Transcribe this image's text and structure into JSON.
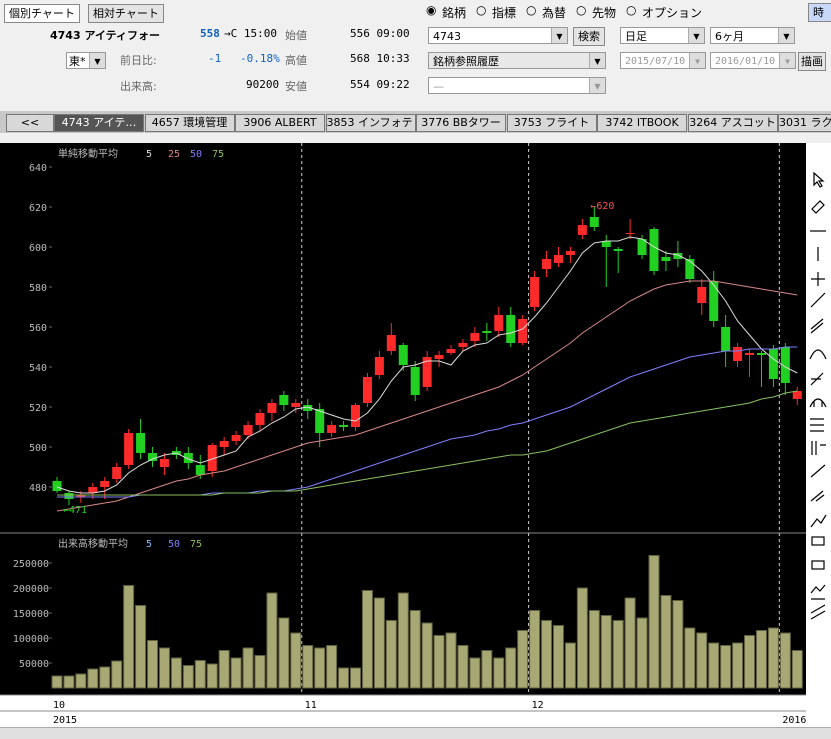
{
  "header": {
    "buttons": [
      "個別チャート",
      "相対チャート"
    ],
    "code_name": "4743 アイティフォー",
    "price": "558",
    "price_time": "→C 15:00",
    "exchange": "東*",
    "change_label": "前日比:",
    "change": "-1",
    "change_pct": "-0.18%",
    "volume_label": "出来高:",
    "volume": "90200",
    "open_label": "始値",
    "open": "556 09:00",
    "high_label": "高値",
    "high": "568 10:33",
    "low_label": "安値",
    "low": "554 09:22"
  },
  "search": {
    "modes": [
      "銘柄",
      "指標",
      "為替",
      "先物",
      "オプション"
    ],
    "code": "4743",
    "search_button": "検索",
    "history": "銘柄参照履歴",
    "sub": "—",
    "period": "日足",
    "span": "6ヶ月",
    "from": "2015/07/10",
    "to": "2016/01/10",
    "draw_button": "描画",
    "cut_button": "時"
  },
  "tabs": [
    "<<",
    "4743 アイテ…",
    "4657 環境管理",
    "3906 ALBERT",
    "3853 インフォテリ",
    "3776 BBタワー",
    "3753 フライト",
    "3742 ITBOOK",
    "3264 アスコット",
    "3031 ラク"
  ],
  "chart_data": [
    {
      "type": "candlestick",
      "title": "単純移動平均",
      "categories": [
        "10",
        null,
        null,
        null,
        null,
        null,
        null,
        null,
        null,
        null,
        null,
        null,
        null,
        null,
        null,
        null,
        null,
        null,
        null,
        null,
        null,
        "11",
        null,
        null,
        null,
        null,
        null,
        null,
        null,
        null,
        null,
        null,
        null,
        null,
        null,
        null,
        null,
        null,
        null,
        null,
        "12",
        null,
        null,
        null,
        null,
        null,
        null,
        null,
        null,
        null,
        null,
        null,
        null,
        null,
        null,
        null,
        null,
        null,
        null,
        null,
        null,
        null,
        null
      ],
      "open": [
        483,
        477,
        475,
        477,
        480,
        484,
        491,
        507,
        497,
        490,
        498,
        497,
        491,
        488,
        500,
        503,
        506,
        511,
        517,
        526,
        520,
        521,
        519,
        507,
        511,
        510,
        522,
        536,
        548,
        551,
        540,
        530,
        544,
        547,
        550,
        553,
        558,
        558,
        566,
        552,
        570,
        589,
        592,
        596,
        606,
        615,
        603,
        599,
        607,
        604,
        609,
        595,
        597,
        594,
        572,
        583,
        560,
        543,
        546,
        547,
        549,
        550,
        524
      ],
      "high": [
        485,
        478,
        478,
        482,
        485,
        492,
        509,
        514,
        500,
        497,
        500,
        500,
        496,
        502,
        505,
        508,
        513,
        519,
        524,
        528,
        524,
        524,
        522,
        513,
        513,
        522,
        537,
        548,
        562,
        552,
        543,
        548,
        548,
        551,
        554,
        560,
        562,
        570,
        570,
        566,
        588,
        598,
        600,
        600,
        614,
        620,
        606,
        600,
        614,
        606,
        610,
        598,
        603,
        596,
        584,
        588,
        566,
        552,
        549,
        548,
        551,
        552,
        530
      ],
      "low": [
        477,
        471,
        472,
        474,
        474,
        482,
        489,
        494,
        490,
        486,
        494,
        489,
        484,
        485,
        496,
        501,
        504,
        508,
        513,
        518,
        517,
        514,
        500,
        505,
        508,
        508,
        520,
        534,
        546,
        538,
        523,
        528,
        540,
        546,
        548,
        550,
        553,
        555,
        550,
        551,
        568,
        585,
        590,
        592,
        604,
        608,
        580,
        587,
        604,
        594,
        586,
        588,
        590,
        582,
        566,
        560,
        540,
        540,
        535,
        530,
        530,
        526,
        521
      ],
      "close": [
        478,
        474,
        476,
        480,
        483,
        490,
        507,
        497,
        493,
        494,
        496,
        492,
        486,
        501,
        503,
        506,
        511,
        517,
        522,
        521,
        522,
        518,
        507,
        511,
        510,
        521,
        535,
        545,
        556,
        541,
        526,
        545,
        546,
        549,
        552,
        557,
        557,
        566,
        552,
        564,
        585,
        594,
        596,
        598,
        611,
        610,
        600,
        598,
        607,
        596,
        588,
        593,
        594,
        584,
        580,
        563,
        548,
        550,
        547,
        546,
        534,
        532,
        528
      ],
      "up_color": "#ff2a2a",
      "down_color": "#22d022",
      "series": [
        {
          "name": "5",
          "color": "#dcdcdc",
          "values": [
            480,
            478,
            477,
            477,
            478,
            481,
            487,
            491,
            494,
            496,
            497,
            494,
            492,
            494,
            496,
            498,
            505,
            508,
            512,
            515,
            519,
            520,
            518,
            516,
            514,
            513,
            517,
            524,
            533,
            540,
            541,
            543,
            543,
            541,
            548,
            551,
            552,
            556,
            557,
            559,
            565,
            572,
            580,
            588,
            597,
            602,
            603,
            603,
            605,
            604,
            600,
            597,
            596,
            593,
            588,
            581,
            573,
            563,
            556,
            549,
            544,
            540,
            537
          ]
        },
        {
          "name": "25",
          "color": "#d88888",
          "values": [
            468,
            469,
            470,
            471,
            472,
            473,
            475,
            477,
            479,
            481,
            483,
            484,
            486,
            487,
            488,
            490,
            492,
            494,
            496,
            498,
            500,
            502,
            503,
            504,
            505,
            506,
            508,
            510,
            512,
            514,
            516,
            518,
            520,
            522,
            524,
            526,
            528,
            530,
            533,
            536,
            540,
            544,
            548,
            552,
            557,
            561,
            565,
            569,
            573,
            576,
            579,
            581,
            582,
            583,
            583,
            583,
            582,
            581,
            580,
            579,
            578,
            577,
            576
          ]
        },
        {
          "name": "50",
          "color": "#8080ff",
          "values": [
            475,
            475,
            475,
            475,
            475,
            475,
            475,
            476,
            476,
            476,
            476,
            476,
            476,
            477,
            477,
            477,
            477,
            478,
            478,
            478,
            479,
            480,
            482,
            484,
            486,
            488,
            490,
            492,
            494,
            496,
            498,
            500,
            502,
            504,
            505,
            506,
            508,
            509,
            511,
            512,
            514,
            516,
            518,
            520,
            523,
            526,
            529,
            532,
            535,
            537,
            539,
            541,
            543,
            545,
            546,
            547,
            548,
            548,
            549,
            549,
            549,
            550,
            550
          ]
        },
        {
          "name": "75",
          "color": "#88c060",
          "values": [
            476,
            476,
            476,
            476,
            476,
            476,
            476,
            476,
            476,
            476,
            476,
            476,
            476,
            476,
            477,
            477,
            477,
            477,
            478,
            478,
            478,
            479,
            480,
            481,
            482,
            483,
            484,
            485,
            486,
            487,
            488,
            489,
            490,
            491,
            492,
            493,
            494,
            495,
            496,
            496,
            497,
            498,
            500,
            502,
            504,
            506,
            508,
            510,
            512,
            513,
            514,
            515,
            516,
            517,
            518,
            519,
            520,
            521,
            522,
            524,
            525,
            527,
            528
          ]
        }
      ],
      "ylim": [
        458.5,
        652
      ],
      "yticks": [
        480,
        500,
        520,
        540,
        560,
        580,
        600,
        620,
        640
      ],
      "annotations": [
        "←620",
        "←471"
      ]
    },
    {
      "type": "bar",
      "title": "出来高移動平均",
      "values": [
        24000,
        24000,
        28000,
        38000,
        42000,
        54000,
        205000,
        165000,
        95000,
        80000,
        60000,
        45000,
        55000,
        48000,
        75000,
        60000,
        80000,
        65000,
        190000,
        140000,
        110000,
        85000,
        80000,
        85000,
        40000,
        40000,
        195000,
        180000,
        135000,
        190000,
        155000,
        130000,
        105000,
        110000,
        85000,
        60000,
        75000,
        60000,
        80000,
        115000,
        155000,
        135000,
        125000,
        90000,
        200000,
        155000,
        145000,
        135000,
        180000,
        140000,
        265000,
        185000,
        175000,
        120000,
        110000,
        90000,
        85000,
        90000,
        105000,
        115000,
        120000,
        110000,
        75000
      ],
      "color": "#a8a874",
      "ylim": [
        0,
        302000
      ],
      "yticks": [
        50000,
        100000,
        150000,
        200000,
        250000
      ],
      "legend": [
        {
          "name": "5",
          "color": "#80c0ff"
        },
        {
          "name": "50",
          "color": "#8080ff"
        },
        {
          "name": "75",
          "color": "#88c060"
        }
      ],
      "years": [
        "2015",
        null,
        null,
        null,
        null,
        null,
        null,
        null,
        null,
        null,
        null,
        null,
        null,
        null,
        null,
        null,
        null,
        null,
        null,
        null,
        null,
        null,
        null,
        null,
        null,
        null,
        null,
        null,
        null,
        null,
        null,
        null,
        null,
        null,
        null,
        null,
        null,
        null,
        null,
        null,
        null,
        null,
        null,
        null,
        null,
        null,
        null,
        null,
        null,
        null,
        null,
        null,
        null,
        null,
        null,
        null,
        null,
        null,
        null,
        null,
        null,
        "2016",
        null
      ]
    }
  ]
}
